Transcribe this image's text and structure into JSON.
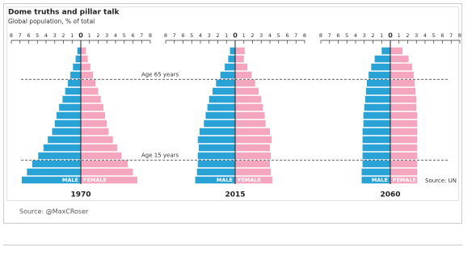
{
  "header": {
    "title": "Dome truths and pillar talk",
    "subtitle": "Global population, % of total"
  },
  "annotations": [
    "Age 65 years",
    "Age 15 years"
  ],
  "source": "Source: UN",
  "footer": "Source: @MaxCRoser",
  "chart_data": [
    {
      "type": "pyramid",
      "title": "1970",
      "xlim": [
        -8,
        8
      ],
      "xticks": [
        {
          "value": -8,
          "label": "8"
        },
        {
          "value": -7,
          "label": "7"
        },
        {
          "value": -6,
          "label": "6"
        },
        {
          "value": -5,
          "label": "5"
        },
        {
          "value": -4,
          "label": "4"
        },
        {
          "value": -3,
          "label": "3"
        },
        {
          "value": -2,
          "label": "2"
        },
        {
          "value": -1,
          "label": "1"
        },
        0,
        1,
        2,
        3,
        4,
        5,
        6,
        7,
        8
      ],
      "series": [
        {
          "name": "MALE",
          "color": "#29a3d6",
          "values": [
            -6.8,
            -6.2,
            -5.6,
            -4.9,
            -4.3,
            -3.8,
            -3.3,
            -3.0,
            -2.8,
            -2.5,
            -2.1,
            -1.8,
            -1.5,
            -1.2,
            -0.9,
            -0.6,
            -0.4
          ]
        },
        {
          "name": "FEMALE",
          "color": "#f4a6bf",
          "values": [
            6.5,
            6.0,
            5.4,
            4.7,
            4.2,
            3.7,
            3.2,
            3.0,
            2.8,
            2.6,
            2.3,
            2.0,
            1.7,
            1.4,
            1.1,
            0.8,
            0.6
          ]
        }
      ]
    },
    {
      "type": "pyramid",
      "title": "2015",
      "xlim": [
        -8,
        8
      ],
      "xticks": [
        {
          "value": -8,
          "label": "8"
        },
        {
          "value": -7,
          "label": "7"
        },
        {
          "value": -6,
          "label": "6"
        },
        {
          "value": -5,
          "label": "5"
        },
        {
          "value": -4,
          "label": "4"
        },
        {
          "value": -3,
          "label": "3"
        },
        {
          "value": -2,
          "label": "2"
        },
        {
          "value": -1,
          "label": "1"
        },
        0,
        1,
        2,
        3,
        4,
        5,
        6,
        7,
        8
      ],
      "series": [
        {
          "name": "MALE",
          "color": "#29a3d6",
          "values": [
            -4.6,
            -4.4,
            -4.3,
            -4.3,
            -4.2,
            -4.3,
            -4.1,
            -3.6,
            -3.4,
            -3.2,
            -3.0,
            -2.6,
            -2.2,
            -1.7,
            -1.2,
            -0.8,
            -0.6
          ]
        },
        {
          "name": "FEMALE",
          "color": "#f4a6bf",
          "values": [
            4.3,
            4.1,
            4.0,
            4.1,
            4.0,
            4.2,
            4.0,
            3.5,
            3.4,
            3.2,
            3.0,
            2.7,
            2.3,
            1.9,
            1.4,
            1.0,
            1.1
          ]
        }
      ]
    },
    {
      "type": "pyramid",
      "title": "2060",
      "xlim": [
        -8,
        8
      ],
      "xticks": [
        {
          "value": -8,
          "label": "8"
        },
        {
          "value": -7,
          "label": "7"
        },
        {
          "value": -6,
          "label": "6"
        },
        {
          "value": -5,
          "label": "5"
        },
        {
          "value": -4,
          "label": "4"
        },
        {
          "value": -3,
          "label": "3"
        },
        {
          "value": -2,
          "label": "2"
        },
        {
          "value": -1,
          "label": "1"
        },
        0,
        1,
        2,
        3,
        4,
        5,
        6,
        7,
        8
      ],
      "series": [
        {
          "name": "MALE",
          "color": "#29a3d6",
          "values": [
            -3.3,
            -3.3,
            -3.2,
            -3.2,
            -3.2,
            -3.2,
            -3.2,
            -3.1,
            -3.1,
            -3.0,
            -2.9,
            -2.8,
            -2.7,
            -2.5,
            -2.2,
            -1.8,
            -1.0
          ]
        },
        {
          "name": "FEMALE",
          "color": "#f4a6bf",
          "values": [
            3.1,
            3.1,
            3.1,
            3.1,
            3.1,
            3.1,
            3.1,
            3.1,
            3.1,
            3.0,
            3.0,
            2.9,
            2.8,
            2.7,
            2.5,
            2.1,
            1.4
          ]
        }
      ]
    }
  ]
}
